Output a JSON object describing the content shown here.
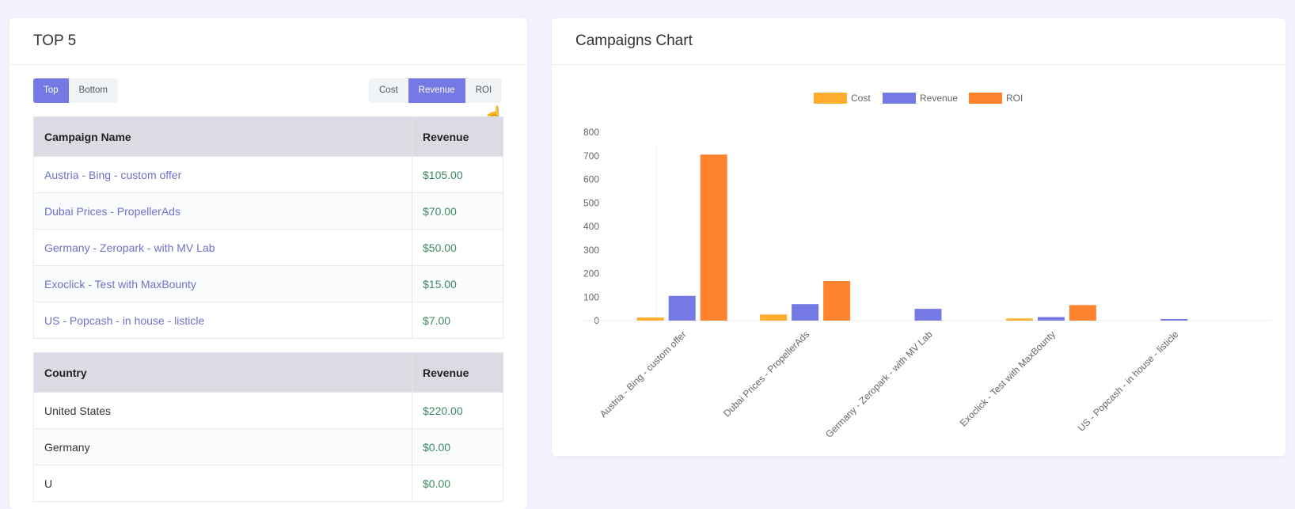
{
  "top5": {
    "title": "TOP 5",
    "order_buttons": [
      {
        "label": "Top",
        "active": true
      },
      {
        "label": "Bottom",
        "active": false
      }
    ],
    "metric_buttons": [
      {
        "label": "Cost",
        "active": false
      },
      {
        "label": "Revenue",
        "active": true
      },
      {
        "label": "ROI",
        "active": false
      }
    ],
    "campaigns": {
      "headers": [
        "Campaign Name",
        "Revenue"
      ],
      "rows": [
        {
          "name": "Austria - Bing - custom offer",
          "value": "$105.00"
        },
        {
          "name": "Dubai Prices - PropellerAds",
          "value": "$70.00"
        },
        {
          "name": "Germany - Zeropark - with MV Lab",
          "value": "$50.00"
        },
        {
          "name": "Exoclick - Test with MaxBounty",
          "value": "$15.00"
        },
        {
          "name": "US - Popcash - in house - listicle",
          "value": "$7.00"
        }
      ]
    },
    "countries": {
      "headers": [
        "Country",
        "Revenue"
      ],
      "rows": [
        {
          "name": "United States",
          "value": "$220.00"
        },
        {
          "name": "Germany",
          "value": "$0.00"
        },
        {
          "name": "U",
          "value": "$0.00"
        }
      ]
    }
  },
  "chart": {
    "title": "Campaigns Chart"
  },
  "chart_data": {
    "type": "bar",
    "categories": [
      "Austria - Bing - custom offer",
      "Dubai Prices - PropellerAds",
      "Germany - Zeropark - with MV Lab",
      "Exoclick - Test with MaxBounty",
      "US - Popcash - in house - listicle"
    ],
    "series": [
      {
        "name": "Cost",
        "color": "#ffad2e",
        "values": [
          13,
          26,
          0,
          9,
          0
        ]
      },
      {
        "name": "Revenue",
        "color": "#7479e3",
        "values": [
          105,
          70,
          50,
          15,
          7
        ]
      },
      {
        "name": "ROI",
        "color": "#ff832e",
        "values": [
          705,
          168,
          0,
          66,
          0
        ]
      }
    ],
    "ylim": [
      0,
      800
    ],
    "yticks": [
      "0",
      "100",
      "200",
      "300",
      "400",
      "500",
      "600",
      "700",
      "800"
    ],
    "legend": "top",
    "grid": false
  }
}
